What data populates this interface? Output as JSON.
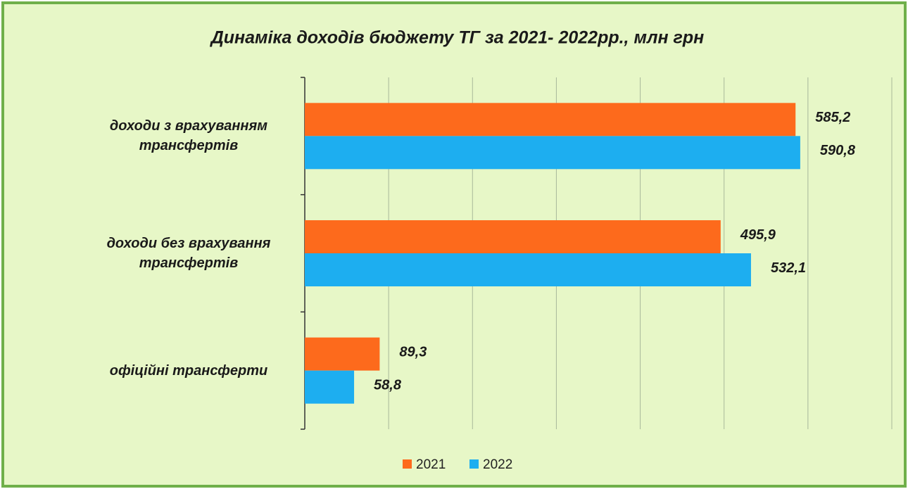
{
  "chart_data": {
    "type": "bar",
    "orientation": "horizontal",
    "title": "Динаміка доходів бюджету ТГ за 2021- 2022рр., млн грн",
    "categories": [
      "доходи з врахуванням трансфертів",
      "доходи без врахування трансфертів",
      "офіційні трансферти"
    ],
    "series": [
      {
        "name": "2021",
        "color": "#fd6a1c",
        "values": [
          585.2,
          495.9,
          89.3
        ],
        "value_labels": [
          "585,2",
          "495,9",
          "89,3"
        ]
      },
      {
        "name": "2022",
        "color": "#1daef0",
        "values": [
          590.8,
          532.1,
          58.8
        ],
        "value_labels": [
          "590,8",
          "532,1",
          "58,8"
        ]
      }
    ],
    "xlim": [
      0,
      700
    ],
    "xticks": [
      0,
      100,
      200,
      300,
      400,
      500,
      600,
      700
    ],
    "grid": true,
    "legend": "bottom"
  }
}
